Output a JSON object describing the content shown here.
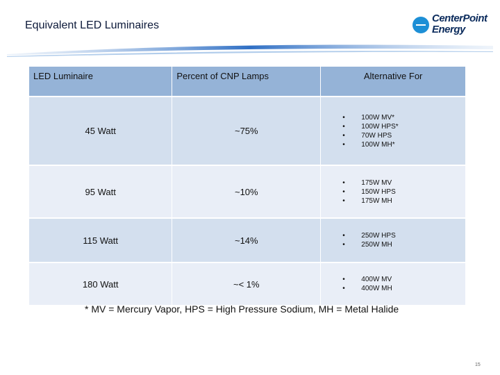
{
  "header": {
    "title": "Equivalent LED Luminaires",
    "logo_line1": "CenterPoint",
    "logo_line2": "Energy",
    "brand_color": "#1d8fd6"
  },
  "table": {
    "headers": [
      "LED Luminaire",
      "Percent of CNP Lamps",
      "Alternative For"
    ],
    "rows": [
      {
        "luminaire": "45 Watt",
        "percent": "~75%",
        "alternatives": [
          "100W MV*",
          "100W HPS*",
          "70W HPS",
          "100W MH*"
        ]
      },
      {
        "luminaire": "95 Watt",
        "percent": "~10%",
        "alternatives": [
          "175W MV",
          "150W HPS",
          "175W MH"
        ]
      },
      {
        "luminaire": "115 Watt",
        "percent": "~14%",
        "alternatives": [
          "250W HPS",
          "250W MH"
        ]
      },
      {
        "luminaire": "180 Watt",
        "percent": "~< 1%",
        "alternatives": [
          "400W MV",
          "400W MH"
        ]
      }
    ],
    "header_color": "#95b3d7",
    "row_colors": [
      "#d3dfee",
      "#e9eef7"
    ]
  },
  "footnote": "* MV = Mercury Vapor, HPS = High Pressure Sodium, MH = Metal Halide",
  "page_number": "15"
}
